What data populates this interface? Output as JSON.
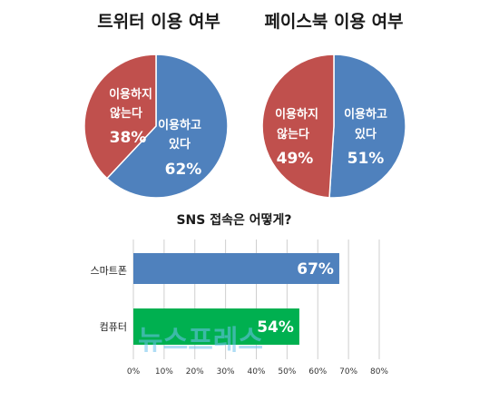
{
  "chart_data": [
    {
      "type": "pie",
      "title": "트위터 이용 여부",
      "slices": [
        {
          "label_lines": [
            "이용하고",
            "있다"
          ],
          "value": 62,
          "value_label": "62%",
          "color": "#4f81bd"
        },
        {
          "label_lines": [
            "이용하지",
            "않는다"
          ],
          "value": 38,
          "value_label": "38%",
          "color": "#c0504d"
        }
      ]
    },
    {
      "type": "pie",
      "title": "페이스북 이용 여부",
      "slices": [
        {
          "label_lines": [
            "이용하고",
            "있다"
          ],
          "value": 51,
          "value_label": "51%",
          "color": "#4f81bd"
        },
        {
          "label_lines": [
            "이용하지",
            "않는다"
          ],
          "value": 49,
          "value_label": "49%",
          "color": "#c0504d"
        }
      ]
    },
    {
      "type": "bar",
      "orientation": "horizontal",
      "title": "SNS 접속은 어떻게?",
      "categories": [
        "스마트폰",
        "컴퓨터"
      ],
      "values": [
        67,
        54
      ],
      "value_labels": [
        "67%",
        "54%"
      ],
      "colors": [
        "#4f81bd",
        "#00b050"
      ],
      "xlim": [
        0,
        80
      ],
      "ticks": [
        "0%",
        "10%",
        "20%",
        "30%",
        "40%",
        "50%",
        "60%",
        "70%",
        "80%"
      ],
      "grid": true
    }
  ],
  "watermark_text": "뉴스프레스"
}
